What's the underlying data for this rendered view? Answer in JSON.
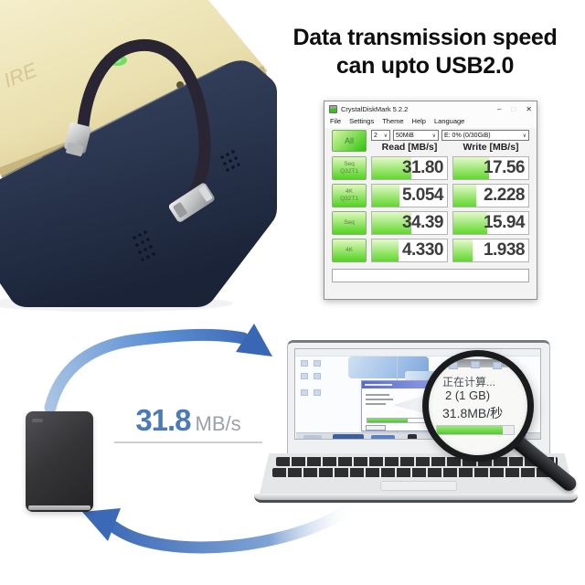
{
  "headline": {
    "line1": "Data transmission speed",
    "line2": "can upto USB2.0"
  },
  "photo": {
    "engraving": "IRE"
  },
  "cdm": {
    "title": "CrystalDiskMark 5.2.2",
    "window_controls": {
      "minimize": "–",
      "maximize": "□",
      "close": "✕"
    },
    "menu": [
      "File",
      "Settings",
      "Theme",
      "Help",
      "Language"
    ],
    "all_button": "All",
    "chevron": "∨",
    "dropdowns": [
      {
        "value": "2"
      },
      {
        "value": "50MiB"
      },
      {
        "value": "E: 0% (0/30GiB)"
      }
    ],
    "columns": {
      "read": "Read [MB/s]",
      "write": "Write [MB/s]"
    },
    "rows": [
      {
        "label_line1": "Seq",
        "label_line2": "Q32T1",
        "read": "31.80",
        "write": "17.56",
        "read_bar_pct": 53,
        "write_bar_pct": 47
      },
      {
        "label_line1": "4K",
        "label_line2": "Q32T1",
        "read": "5.054",
        "write": "2.228",
        "read_bar_pct": 36,
        "write_bar_pct": 30
      },
      {
        "label_line1": "Seq",
        "label_line2": "",
        "read": "34.39",
        "write": "15.94",
        "read_bar_pct": 53,
        "write_bar_pct": 45
      },
      {
        "label_line1": "4K",
        "label_line2": "",
        "read": "4.330",
        "write": "1.938",
        "read_bar_pct": 35,
        "write_bar_pct": 26
      }
    ],
    "comment_value": ""
  },
  "transfer": {
    "speed_value": "31.8",
    "speed_unit": "MB/s",
    "magnifier": {
      "status": "正在计算...",
      "detail": "2 (1 GB)",
      "speed": "31.8MB/秒",
      "progress_pct": 86
    },
    "dialog_progress_pct": 60
  },
  "colors": {
    "arrow_blue": "#3f6fc0",
    "cdm_green": "#3ecb16",
    "speed_blue": "#4b7ab8",
    "device_gold": "#e9dfae",
    "device_navy": "#28334c"
  }
}
